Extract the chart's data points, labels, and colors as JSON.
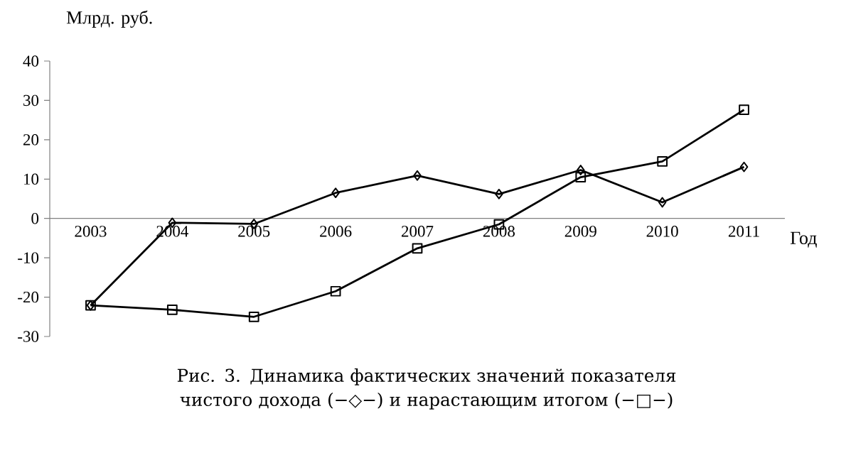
{
  "chart_data": {
    "type": "line",
    "ylabel": "Млрд. руб.",
    "xlabel": "Год",
    "categories": [
      "2003",
      "2004",
      "2005",
      "2006",
      "2007",
      "2008",
      "2009",
      "2010",
      "2011"
    ],
    "series": [
      {
        "color": "#000000",
        "marker": "diamond",
        "values": [
          -22.1,
          -1.1,
          -1.4,
          6.5,
          10.9,
          6.2,
          12.3,
          4.1,
          13.1
        ]
      },
      {
        "color": "#000000",
        "marker": "square",
        "values": [
          -22.1,
          -23.2,
          -25.0,
          -18.5,
          -7.6,
          -1.5,
          10.5,
          14.5,
          27.6
        ]
      }
    ],
    "ylim": [
      -30,
      40
    ],
    "yticks": [
      -30,
      -20,
      -10,
      0,
      10,
      20,
      30,
      40
    ],
    "line_style": "solid",
    "grid": false,
    "annotations": [
      "Рис. 3. Динамика фактических значений показателя чистого дохода (−◇−) и нарастающим итогом (−□−)"
    ]
  }
}
